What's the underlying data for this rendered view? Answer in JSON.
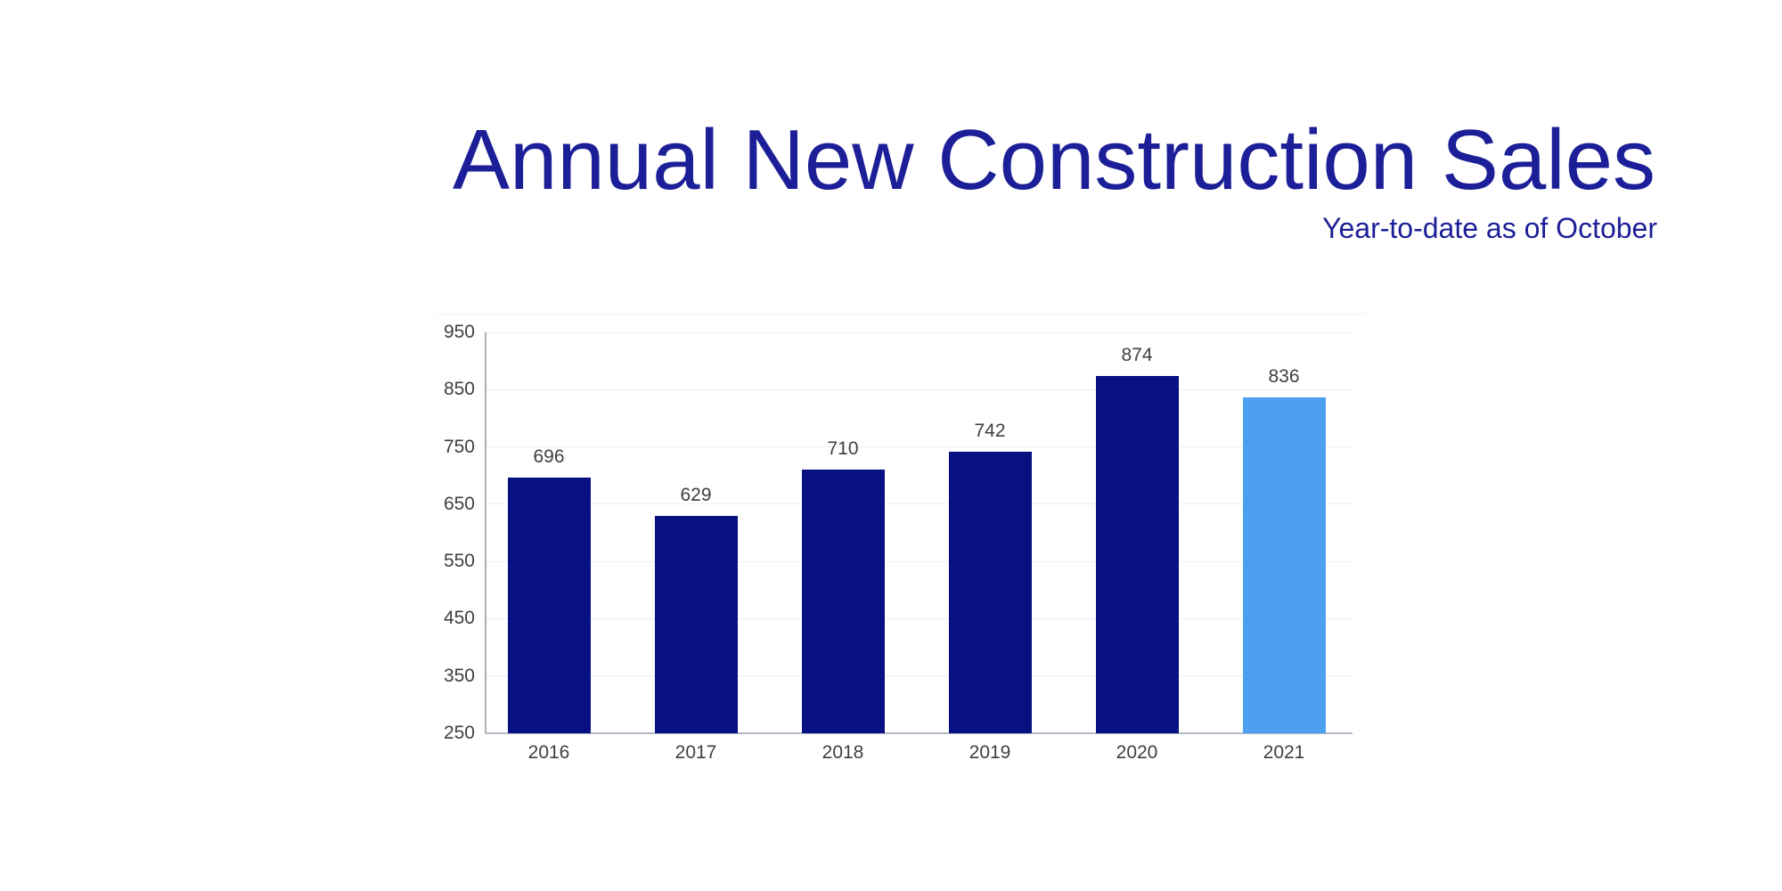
{
  "header": {
    "title": "Annual New Construction Sales",
    "subtitle": "Year-to-date as of October",
    "title_color": "#1c1f97",
    "subtitle_color": "#1c1f97"
  },
  "chart_data": {
    "type": "bar",
    "title": "Annual New Construction Sales",
    "subtitle": "Year-to-date as of October",
    "categories": [
      "2016",
      "2017",
      "2018",
      "2019",
      "2020",
      "2021"
    ],
    "values": [
      696,
      629,
      710,
      742,
      874,
      836
    ],
    "highlighted_category": "2021",
    "xlabel": "",
    "ylabel": "",
    "ylim": [
      250,
      950
    ],
    "y_ticks": [
      250,
      350,
      450,
      550,
      650,
      750,
      850,
      950
    ],
    "grid": true,
    "legend": "none",
    "colors": {
      "bar_default": "#071182",
      "bar_highlight": "#4da0f0",
      "gridline": "#e9eef6",
      "axis_line": "#aab0b8",
      "bottom_axis_line": "#b4bac4",
      "tick_label": "#3f3f3f",
      "value_label": "#3f3f3f"
    }
  }
}
